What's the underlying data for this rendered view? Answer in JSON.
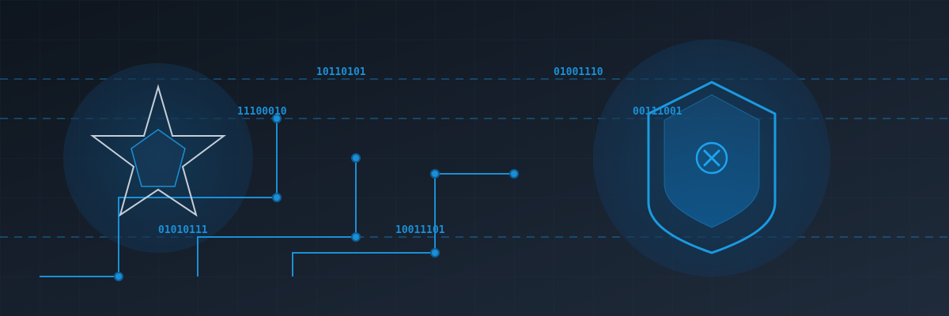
{
  "binary_labels": {
    "b1": "10110101",
    "b2": "01001110",
    "b3": "11100010",
    "b4": "00111001",
    "b5": "01010111",
    "b6": "10011101"
  },
  "colors": {
    "background_start": "#0f1620",
    "background_end": "#1e2a3a",
    "circuit_blue": "#1b8fd6",
    "glow_blue": "#0f3a5a",
    "star_outline": "#c8d2dc",
    "shield_fill": "#0f4a78"
  },
  "icons": {
    "star": "star-icon",
    "shield": "shield-icon",
    "close": "close-x-icon"
  }
}
